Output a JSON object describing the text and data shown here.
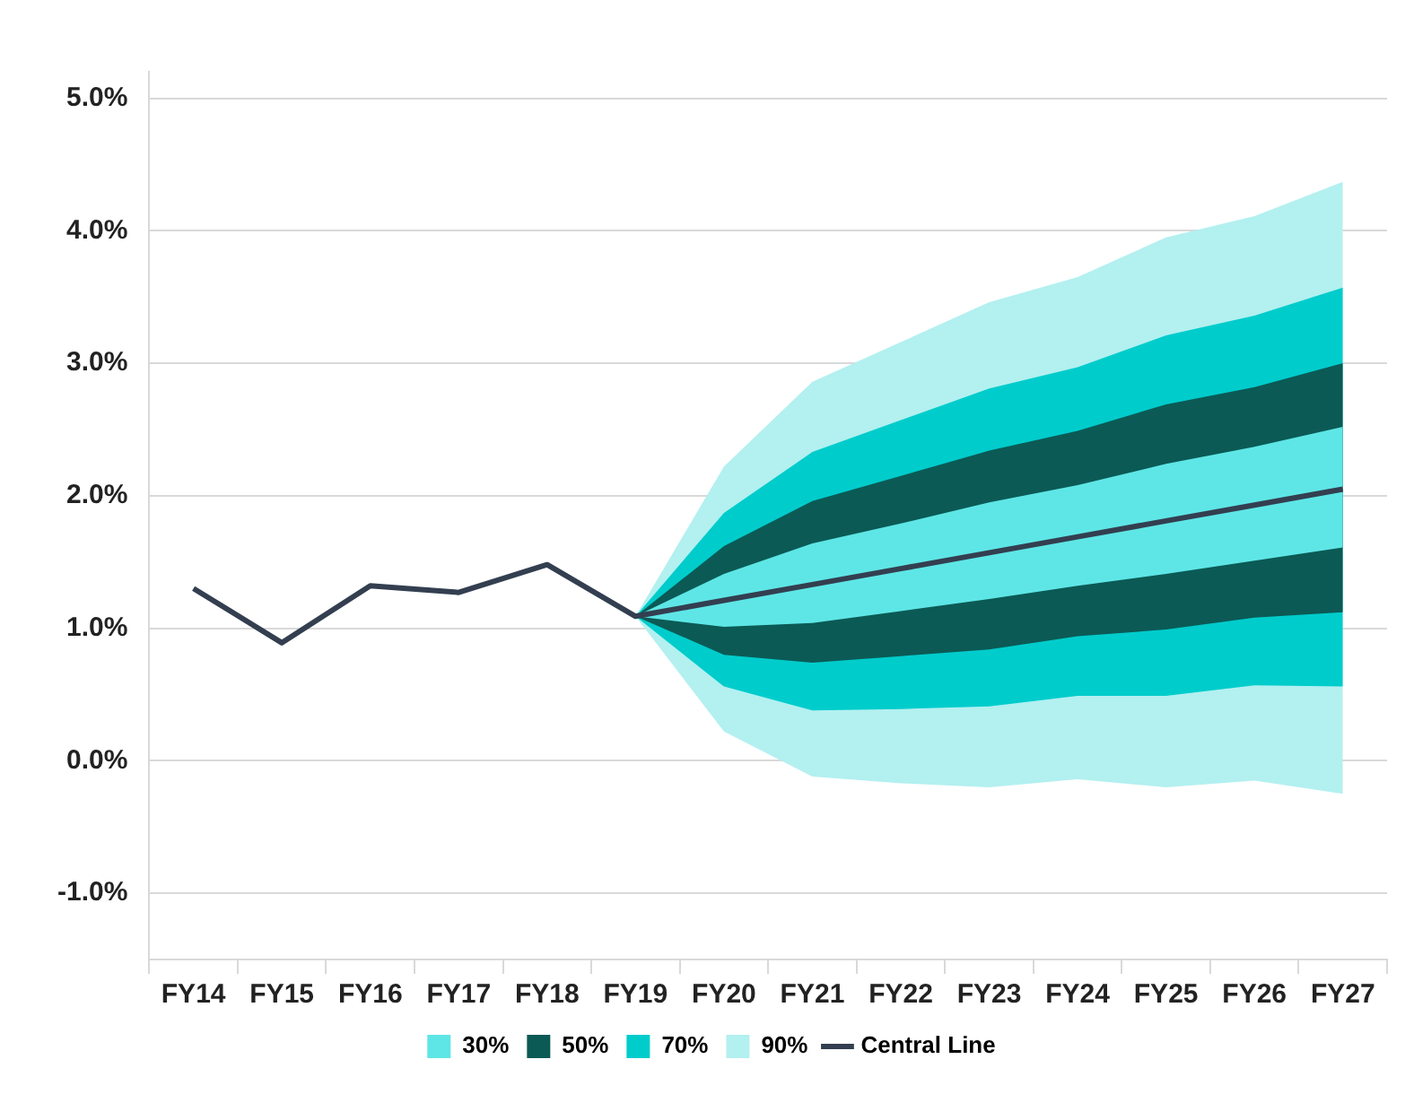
{
  "chart_data": {
    "type": "line",
    "categories": [
      "FY14",
      "FY15",
      "FY16",
      "FY17",
      "FY18",
      "FY19",
      "FY20",
      "FY21",
      "FY22",
      "FY23",
      "FY24",
      "FY25",
      "FY26",
      "FY27"
    ],
    "series": [
      {
        "name": "30%",
        "type": "area",
        "color": "#5ee6e6",
        "values": [
          null,
          null,
          null,
          null,
          null,
          null,
          null,
          null,
          null,
          null,
          null,
          null,
          null,
          null
        ],
        "lower": [
          null,
          null,
          null,
          null,
          null,
          1.09,
          1.01,
          1.04,
          1.13,
          1.22,
          1.32,
          1.41,
          1.51,
          1.61
        ],
        "upper": [
          null,
          null,
          null,
          null,
          null,
          1.09,
          1.41,
          1.64,
          1.79,
          1.95,
          2.08,
          2.24,
          2.37,
          2.52
        ]
      },
      {
        "name": "50%",
        "type": "area",
        "color": "#0b5a55",
        "values": [
          null,
          null,
          null,
          null,
          null,
          null,
          null,
          null,
          null,
          null,
          null,
          null,
          null,
          null
        ],
        "lower": [
          null,
          null,
          null,
          null,
          null,
          1.09,
          0.8,
          0.74,
          0.79,
          0.84,
          0.94,
          0.99,
          1.08,
          1.12
        ],
        "upper": [
          null,
          null,
          null,
          null,
          null,
          1.09,
          1.62,
          1.96,
          2.15,
          2.34,
          2.49,
          2.69,
          2.82,
          3.0
        ]
      },
      {
        "name": "70%",
        "type": "area",
        "color": "#00cccc",
        "values": [
          null,
          null,
          null,
          null,
          null,
          null,
          null,
          null,
          null,
          null,
          null,
          null,
          null,
          null
        ],
        "lower": [
          null,
          null,
          null,
          null,
          null,
          1.09,
          0.56,
          0.38,
          0.39,
          0.41,
          0.49,
          0.49,
          0.57,
          0.56
        ],
        "upper": [
          null,
          null,
          null,
          null,
          null,
          1.09,
          1.87,
          2.33,
          2.57,
          2.81,
          2.97,
          3.21,
          3.36,
          3.57
        ]
      },
      {
        "name": "90%",
        "type": "area",
        "color": "#b3f0f0",
        "values": [
          null,
          null,
          null,
          null,
          null,
          null,
          null,
          null,
          null,
          null,
          null,
          null,
          null,
          null
        ],
        "lower": [
          null,
          null,
          null,
          null,
          null,
          1.09,
          0.22,
          -0.12,
          -0.17,
          -0.2,
          -0.14,
          -0.2,
          -0.15,
          -0.25
        ],
        "upper": [
          null,
          null,
          null,
          null,
          null,
          1.09,
          2.22,
          2.86,
          3.16,
          3.46,
          3.65,
          3.95,
          4.11,
          4.37
        ]
      },
      {
        "name": "Central Line",
        "type": "line",
        "color": "#333f50",
        "values": [
          1.3,
          0.89,
          1.32,
          1.27,
          1.48,
          1.09,
          1.21,
          1.33,
          1.45,
          1.57,
          1.69,
          1.81,
          1.93,
          2.05
        ]
      }
    ],
    "ylim": [
      -1.5,
      5.2
    ],
    "yticks": [
      {
        "value": -1,
        "label": "-1.0%"
      },
      {
        "value": 0,
        "label": "0.0%"
      },
      {
        "value": 1,
        "label": "1.0%"
      },
      {
        "value": 2,
        "label": "2.0%"
      },
      {
        "value": 3,
        "label": "3.0%"
      },
      {
        "value": 4,
        "label": "4.0%"
      },
      {
        "value": 5,
        "label": "5.0%"
      }
    ],
    "grid": "y",
    "legend": "bottom",
    "marker": "none",
    "line_style": "solid"
  }
}
